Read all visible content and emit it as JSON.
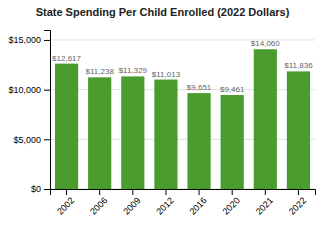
{
  "chart_data": {
    "type": "bar",
    "title": "State Spending Per Child Enrolled (2022 Dollars)",
    "categories": [
      "2002",
      "2006",
      "2009",
      "2012",
      "2016",
      "2020",
      "2021",
      "2022"
    ],
    "values": [
      12617,
      11238,
      11329,
      11013,
      9651,
      9461,
      14060,
      11836
    ],
    "value_labels": [
      "$12,617",
      "$11,238",
      "$11,329",
      "$11,013",
      "$9,651",
      "$9,461",
      "$14,060",
      "$11,836"
    ],
    "data_labels": true,
    "color": "#4a9c2f",
    "ylim": [
      0,
      16000
    ],
    "yticks": [
      {
        "value": 0,
        "label": "$0"
      },
      {
        "value": 5000,
        "label": "$5,000"
      },
      {
        "value": 10000,
        "label": "$10,000"
      },
      {
        "value": 15000,
        "label": "$15,000"
      }
    ],
    "grid": true
  }
}
